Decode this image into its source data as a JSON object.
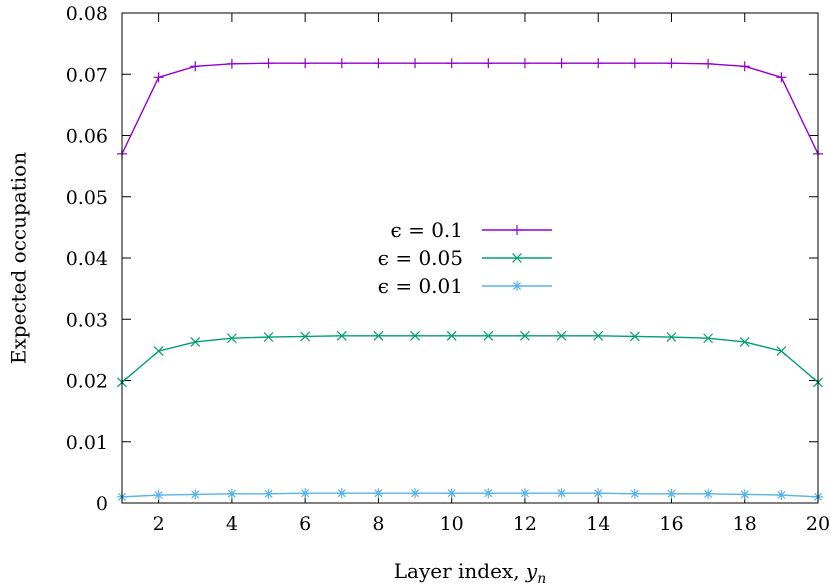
{
  "chart_data": {
    "type": "line",
    "title": "",
    "xlabel": "Layer index, ",
    "xlabel_var": "y",
    "xlabel_sub": "n",
    "ylabel": "Expected occupation",
    "xlim": [
      1,
      20
    ],
    "ylim": [
      0,
      0.08
    ],
    "xticks": [
      2,
      4,
      6,
      8,
      10,
      12,
      14,
      16,
      18,
      20
    ],
    "yticks": [
      0,
      0.01,
      0.02,
      0.03,
      0.04,
      0.05,
      0.06,
      0.07,
      0.08
    ],
    "ytick_labels": [
      "0",
      "0.01",
      "0.02",
      "0.03",
      "0.04",
      "0.05",
      "0.06",
      "0.07",
      "0.08"
    ],
    "grid": false,
    "legend_position": "center",
    "x": [
      1,
      2,
      3,
      4,
      5,
      6,
      7,
      8,
      9,
      10,
      11,
      12,
      13,
      14,
      15,
      16,
      17,
      18,
      19,
      20
    ],
    "series": [
      {
        "name": "ϵ = 0.1",
        "color": "#9400d3",
        "marker": "plus",
        "values": [
          0.057,
          0.0695,
          0.0713,
          0.0717,
          0.0718,
          0.0718,
          0.0718,
          0.0718,
          0.0718,
          0.0718,
          0.0718,
          0.0718,
          0.0718,
          0.0718,
          0.0718,
          0.0718,
          0.0717,
          0.0713,
          0.0695,
          0.057
        ]
      },
      {
        "name": "ϵ = 0.05",
        "color": "#009e73",
        "marker": "cross",
        "values": [
          0.0197,
          0.0248,
          0.0263,
          0.0269,
          0.0271,
          0.0272,
          0.0273,
          0.0273,
          0.0273,
          0.0273,
          0.0273,
          0.0273,
          0.0273,
          0.0273,
          0.0272,
          0.0271,
          0.0269,
          0.0263,
          0.0248,
          0.0197
        ]
      },
      {
        "name": "ϵ = 0.01",
        "color": "#56b4e9",
        "marker": "star",
        "values": [
          0.001,
          0.0013,
          0.0014,
          0.0015,
          0.0015,
          0.0016,
          0.0016,
          0.0016,
          0.0016,
          0.0016,
          0.0016,
          0.0016,
          0.0016,
          0.0016,
          0.0015,
          0.0015,
          0.0015,
          0.0014,
          0.0013,
          0.001
        ]
      }
    ]
  }
}
